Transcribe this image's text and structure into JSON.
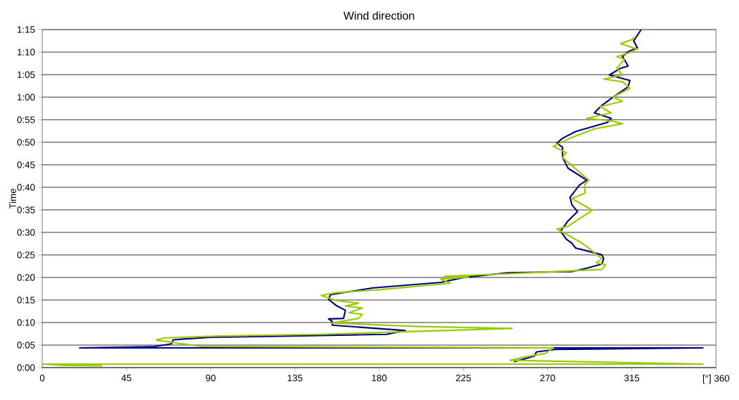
{
  "chart_data": {
    "type": "line",
    "title": "Wind direction",
    "ylabel": "Time",
    "xlim": [
      0,
      360
    ],
    "ylim": [
      0,
      1.25
    ],
    "xticks": [
      0,
      45,
      90,
      135,
      180,
      225,
      270,
      315,
      {
        "value": 360,
        "label": "[°] 360"
      }
    ],
    "yticks": [
      {
        "value": 0,
        "label": "0:00"
      },
      {
        "value": 0.0833,
        "label": "0:05"
      },
      {
        "value": 0.1667,
        "label": "0:10"
      },
      {
        "value": 0.25,
        "label": "0:15"
      },
      {
        "value": 0.3333,
        "label": "0:20"
      },
      {
        "value": 0.4167,
        "label": "0:25"
      },
      {
        "value": 0.5,
        "label": "0:30"
      },
      {
        "value": 0.5833,
        "label": "0:35"
      },
      {
        "value": 0.6667,
        "label": "0:40"
      },
      {
        "value": 0.75,
        "label": "0:45"
      },
      {
        "value": 0.8333,
        "label": "0:50"
      },
      {
        "value": 0.9167,
        "label": "0:55"
      },
      {
        "value": 1.0,
        "label": "1:00"
      },
      {
        "value": 1.0833,
        "label": "1:05"
      },
      {
        "value": 1.1667,
        "label": "1:10"
      },
      {
        "value": 1.25,
        "label": "1:15"
      }
    ],
    "grid": "y",
    "series": [
      {
        "color": "#000080",
        "x": [
          252,
          255,
          263,
          264,
          274,
          353,
          20,
          59,
          69,
          70,
          90,
          132,
          184,
          194,
          155,
          155,
          153,
          161,
          162,
          157,
          153,
          154,
          177,
          213,
          225,
          249,
          283,
          291,
          299,
          300,
          299,
          291,
          285,
          283,
          280,
          277,
          281,
          286,
          283,
          282,
          287,
          291,
          281,
          278,
          278,
          275,
          278,
          285,
          302,
          304,
          295,
          299,
          304,
          313,
          314,
          303,
          309,
          313,
          311,
          310,
          313,
          318,
          316,
          320
        ],
        "values": [
          0.022,
          0.027,
          0.043,
          0.058,
          0.067,
          0.073,
          0.073,
          0.077,
          0.088,
          0.103,
          0.112,
          0.117,
          0.123,
          0.137,
          0.157,
          0.17,
          0.18,
          0.182,
          0.212,
          0.23,
          0.252,
          0.27,
          0.295,
          0.315,
          0.333,
          0.351,
          0.355,
          0.368,
          0.383,
          0.403,
          0.417,
          0.432,
          0.442,
          0.46,
          0.475,
          0.505,
          0.543,
          0.577,
          0.602,
          0.63,
          0.675,
          0.693,
          0.737,
          0.777,
          0.815,
          0.83,
          0.848,
          0.873,
          0.907,
          0.922,
          0.942,
          0.97,
          0.995,
          1.038,
          1.062,
          1.082,
          1.107,
          1.115,
          1.14,
          1.15,
          1.168,
          1.183,
          1.208,
          1.25
        ]
      },
      {
        "color": "#99cc00",
        "x": [
          32,
          12,
          0,
          353,
          250,
          257,
          269,
          273,
          85,
          61,
          65,
          95,
          149,
          251,
          201,
          155,
          169,
          171,
          164,
          171,
          162,
          169,
          157,
          149,
          157,
          180,
          218,
          213,
          228,
          215,
          249,
          299,
          301,
          296,
          299,
          290,
          286,
          275,
          281,
          294,
          283,
          290,
          290,
          292,
          278,
          280,
          273,
          278,
          282,
          295,
          310,
          304,
          291,
          304,
          298,
          310,
          305,
          314,
          310,
          300,
          310,
          307,
          311,
          307,
          313,
          318,
          309,
          315,
          317
        ],
        "values": [
          0.007,
          0.008,
          0.013,
          0.013,
          0.027,
          0.038,
          0.053,
          0.073,
          0.078,
          0.102,
          0.11,
          0.117,
          0.123,
          0.145,
          0.152,
          0.165,
          0.182,
          0.197,
          0.203,
          0.22,
          0.228,
          0.238,
          0.248,
          0.267,
          0.277,
          0.288,
          0.312,
          0.327,
          0.335,
          0.338,
          0.347,
          0.363,
          0.38,
          0.388,
          0.403,
          0.453,
          0.47,
          0.512,
          0.523,
          0.582,
          0.625,
          0.645,
          0.678,
          0.693,
          0.777,
          0.795,
          0.818,
          0.835,
          0.848,
          0.883,
          0.902,
          0.912,
          0.922,
          0.942,
          0.965,
          0.985,
          1.0,
          1.033,
          1.057,
          1.067,
          1.082,
          1.107,
          1.14,
          1.15,
          1.163,
          1.178,
          1.198,
          1.213,
          1.223
        ]
      }
    ]
  }
}
